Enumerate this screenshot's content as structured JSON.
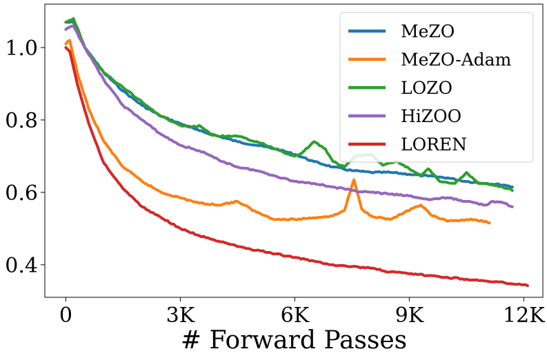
{
  "chart_data": {
    "type": "line",
    "title": "",
    "xlabel": "# Forward Passes",
    "ylabel": "",
    "xlim": [
      -550,
      12500
    ],
    "ylim": [
      0.31,
      1.12
    ],
    "grid": false,
    "legend_position": "top-right",
    "x_ticks": [
      {
        "value": 0,
        "label": "0"
      },
      {
        "value": 3000,
        "label": "3K"
      },
      {
        "value": 6000,
        "label": "6K"
      },
      {
        "value": 9000,
        "label": "9K"
      },
      {
        "value": 12000,
        "label": "12K"
      }
    ],
    "y_ticks": [
      {
        "value": 0.4,
        "label": "0.4"
      },
      {
        "value": 0.6,
        "label": "0.6"
      },
      {
        "value": 0.8,
        "label": "0.8"
      },
      {
        "value": 1.0,
        "label": "1.0"
      }
    ],
    "series": [
      {
        "name": "MeZO",
        "color": "#1f77b4",
        "points": [
          [
            0,
            1.07
          ],
          [
            200,
            1.07
          ],
          [
            500,
            1.0
          ],
          [
            1000,
            0.93
          ],
          [
            1500,
            0.88
          ],
          [
            2000,
            0.84
          ],
          [
            2500,
            0.81
          ],
          [
            3000,
            0.79
          ],
          [
            3500,
            0.77
          ],
          [
            4000,
            0.755
          ],
          [
            4500,
            0.74
          ],
          [
            5000,
            0.73
          ],
          [
            5500,
            0.72
          ],
          [
            6000,
            0.705
          ],
          [
            6500,
            0.685
          ],
          [
            7000,
            0.67
          ],
          [
            7500,
            0.66
          ],
          [
            8000,
            0.655
          ],
          [
            8500,
            0.655
          ],
          [
            9000,
            0.65
          ],
          [
            9500,
            0.645
          ],
          [
            10000,
            0.64
          ],
          [
            10500,
            0.63
          ],
          [
            11000,
            0.625
          ],
          [
            11500,
            0.62
          ],
          [
            11700,
            0.615
          ]
        ]
      },
      {
        "name": "MeZO-Adam",
        "color": "#ff7f0e",
        "points": [
          [
            0,
            1.01
          ],
          [
            100,
            1.02
          ],
          [
            300,
            0.93
          ],
          [
            600,
            0.83
          ],
          [
            1000,
            0.74
          ],
          [
            1500,
            0.67
          ],
          [
            2000,
            0.63
          ],
          [
            2500,
            0.6
          ],
          [
            3000,
            0.585
          ],
          [
            3500,
            0.57
          ],
          [
            4000,
            0.565
          ],
          [
            4500,
            0.575
          ],
          [
            5000,
            0.545
          ],
          [
            5500,
            0.525
          ],
          [
            6000,
            0.525
          ],
          [
            6500,
            0.53
          ],
          [
            7000,
            0.535
          ],
          [
            7300,
            0.55
          ],
          [
            7550,
            0.635
          ],
          [
            7750,
            0.555
          ],
          [
            8000,
            0.535
          ],
          [
            8500,
            0.525
          ],
          [
            9000,
            0.55
          ],
          [
            9300,
            0.565
          ],
          [
            9600,
            0.535
          ],
          [
            10000,
            0.52
          ],
          [
            10500,
            0.525
          ],
          [
            11000,
            0.52
          ],
          [
            11100,
            0.515
          ]
        ]
      },
      {
        "name": "LOZO",
        "color": "#2ca02c",
        "points": [
          [
            0,
            1.07
          ],
          [
            200,
            1.08
          ],
          [
            500,
            1.0
          ],
          [
            1000,
            0.93
          ],
          [
            1500,
            0.89
          ],
          [
            2000,
            0.85
          ],
          [
            2500,
            0.81
          ],
          [
            3000,
            0.785
          ],
          [
            3300,
            0.78
          ],
          [
            3500,
            0.785
          ],
          [
            3800,
            0.76
          ],
          [
            4000,
            0.755
          ],
          [
            4500,
            0.755
          ],
          [
            5000,
            0.74
          ],
          [
            5500,
            0.72
          ],
          [
            6000,
            0.7
          ],
          [
            6200,
            0.71
          ],
          [
            6500,
            0.74
          ],
          [
            6800,
            0.72
          ],
          [
            7000,
            0.685
          ],
          [
            7300,
            0.67
          ],
          [
            7600,
            0.7
          ],
          [
            8000,
            0.705
          ],
          [
            8300,
            0.675
          ],
          [
            8700,
            0.685
          ],
          [
            9000,
            0.665
          ],
          [
            9300,
            0.645
          ],
          [
            9500,
            0.665
          ],
          [
            9800,
            0.63
          ],
          [
            10200,
            0.625
          ],
          [
            10500,
            0.655
          ],
          [
            10800,
            0.625
          ],
          [
            11200,
            0.62
          ],
          [
            11600,
            0.61
          ],
          [
            11700,
            0.605
          ]
        ]
      },
      {
        "name": "HiZOO",
        "color": "#9467bd",
        "points": [
          [
            0,
            1.05
          ],
          [
            200,
            1.06
          ],
          [
            500,
            1.0
          ],
          [
            1000,
            0.91
          ],
          [
            1500,
            0.84
          ],
          [
            2000,
            0.8
          ],
          [
            2500,
            0.76
          ],
          [
            3000,
            0.73
          ],
          [
            3500,
            0.715
          ],
          [
            4000,
            0.69
          ],
          [
            4500,
            0.67
          ],
          [
            5000,
            0.66
          ],
          [
            5500,
            0.645
          ],
          [
            6000,
            0.63
          ],
          [
            6500,
            0.625
          ],
          [
            7000,
            0.615
          ],
          [
            7500,
            0.605
          ],
          [
            8000,
            0.6
          ],
          [
            8500,
            0.595
          ],
          [
            9000,
            0.59
          ],
          [
            9500,
            0.58
          ],
          [
            10000,
            0.585
          ],
          [
            10500,
            0.575
          ],
          [
            11000,
            0.565
          ],
          [
            11200,
            0.575
          ],
          [
            11500,
            0.57
          ],
          [
            11700,
            0.56
          ]
        ]
      },
      {
        "name": "LOREN",
        "color": "#d62728",
        "points": [
          [
            0,
            1.0
          ],
          [
            100,
            0.99
          ],
          [
            300,
            0.9
          ],
          [
            600,
            0.79
          ],
          [
            1000,
            0.68
          ],
          [
            1500,
            0.61
          ],
          [
            2000,
            0.56
          ],
          [
            2500,
            0.53
          ],
          [
            3000,
            0.5
          ],
          [
            3500,
            0.48
          ],
          [
            4000,
            0.465
          ],
          [
            4500,
            0.45
          ],
          [
            5000,
            0.44
          ],
          [
            5500,
            0.43
          ],
          [
            6000,
            0.42
          ],
          [
            6500,
            0.41
          ],
          [
            7000,
            0.4
          ],
          [
            7500,
            0.395
          ],
          [
            8000,
            0.39
          ],
          [
            8500,
            0.38
          ],
          [
            9000,
            0.375
          ],
          [
            9500,
            0.37
          ],
          [
            10000,
            0.365
          ],
          [
            10500,
            0.36
          ],
          [
            11000,
            0.355
          ],
          [
            11500,
            0.35
          ],
          [
            12000,
            0.345
          ],
          [
            12100,
            0.342
          ]
        ]
      }
    ]
  }
}
